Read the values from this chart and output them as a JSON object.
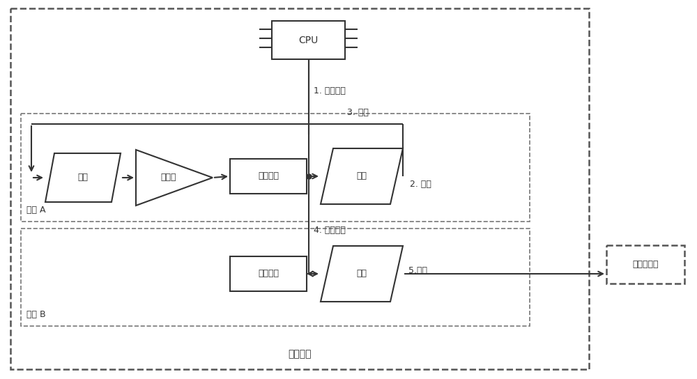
{
  "fig_w": 10.0,
  "fig_h": 5.44,
  "bg_color": "#ffffff",
  "line_color": "#333333",
  "lw": 1.5,
  "lw_thin": 1.2,
  "font_size": 9,
  "font_size_cpu": 10,
  "label_cpu": "CPU",
  "label_recv": "接收",
  "label_flow": "流分类",
  "label_send_queue_a": "发送队列",
  "label_send_a": "发送",
  "label_send_queue_b": "发送队列",
  "label_send_b": "发送",
  "label_dut": "被测试设备",
  "label_1": "1. 插入报文",
  "label_2": "2. 发送",
  "label_3": "3. 环回",
  "label_4": "4. 报文复制",
  "label_5": "5.发送",
  "label_port_a": "端口 A",
  "label_port_b": "端口 B",
  "label_test_device": "测试设备"
}
